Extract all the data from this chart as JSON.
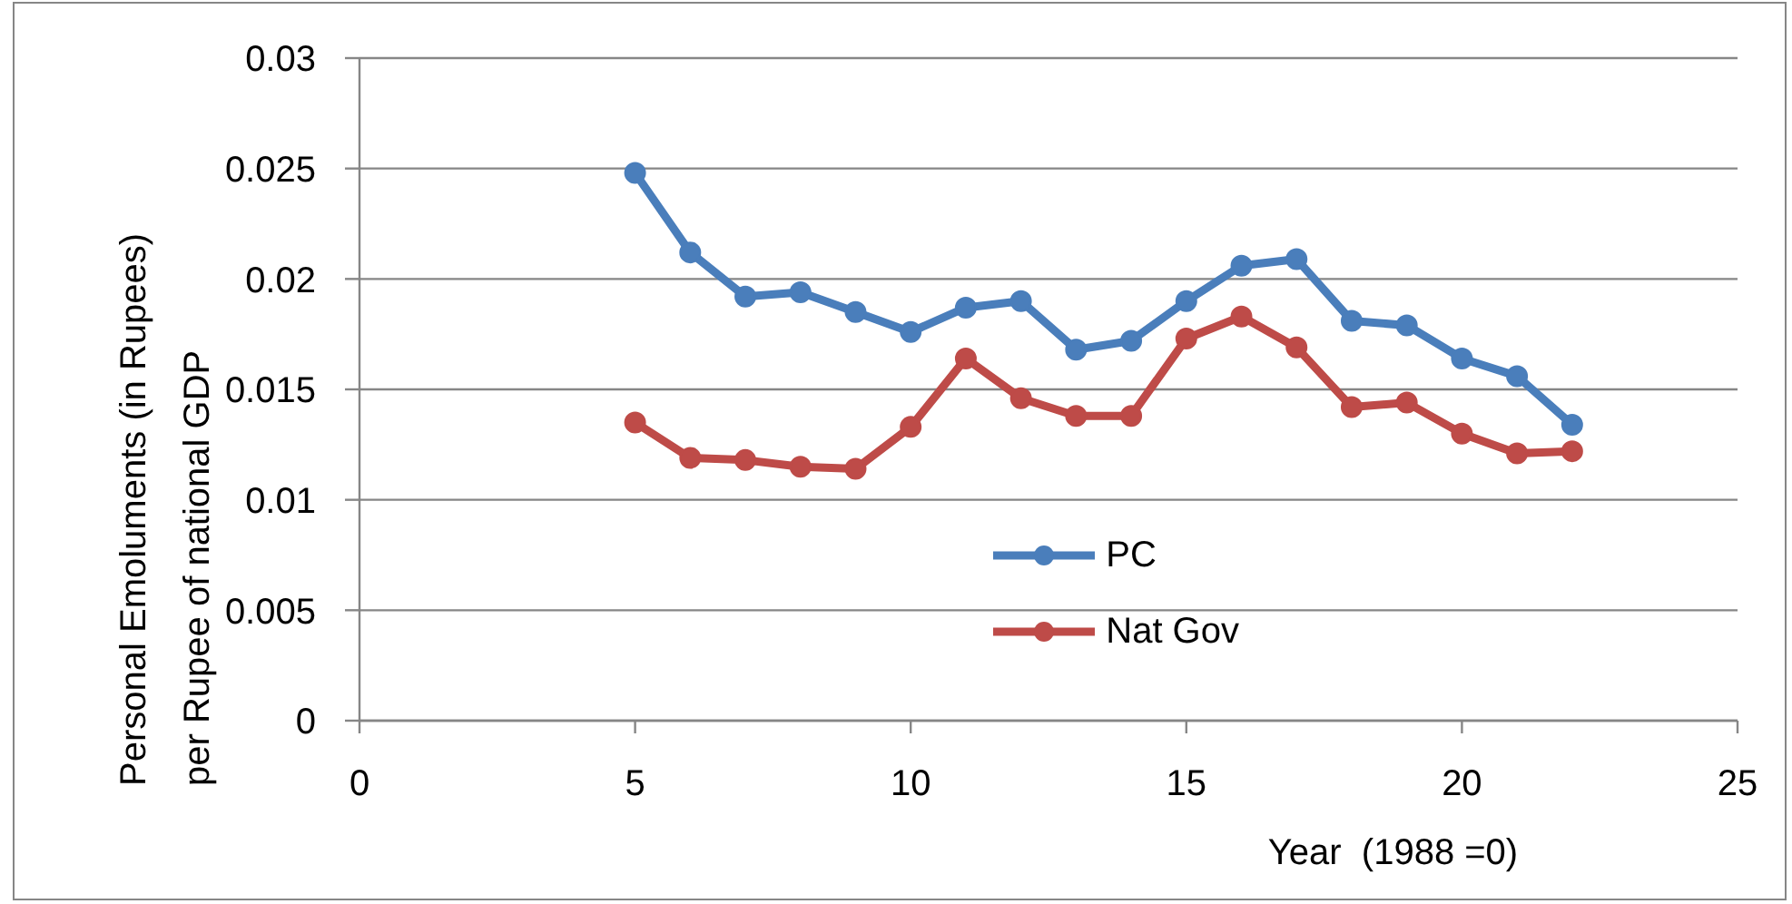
{
  "chart_data": {
    "type": "line",
    "xlabel": "Year  (1988 =0)",
    "ylabel": "Personal Emoluments (in Rupees) per Rupee of national GDP",
    "x": [
      5,
      6,
      7,
      8,
      9,
      10,
      11,
      12,
      13,
      14,
      15,
      16,
      17,
      18,
      19,
      20,
      21,
      22
    ],
    "series": [
      {
        "name": "PC",
        "color": "#4a7ebb",
        "values": [
          0.0248,
          0.0212,
          0.0192,
          0.0194,
          0.0185,
          0.0176,
          0.0187,
          0.019,
          0.0168,
          0.0172,
          0.019,
          0.0206,
          0.0209,
          0.0181,
          0.0179,
          0.0164,
          0.0156,
          0.0134
        ]
      },
      {
        "name": "Nat Gov",
        "color": "#be4b48",
        "values": [
          0.0135,
          0.0119,
          0.0118,
          0.0115,
          0.0114,
          0.0133,
          0.0164,
          0.0146,
          0.0138,
          0.0138,
          0.0173,
          0.0183,
          0.0169,
          0.0142,
          0.0144,
          0.013,
          0.0121,
          0.0122
        ]
      }
    ],
    "xlim": [
      0,
      25
    ],
    "xticks": [
      0,
      5,
      10,
      15,
      20,
      25
    ],
    "ylim": [
      0,
      0.03
    ],
    "yticks": [
      0,
      0.005,
      0.01,
      0.015,
      0.02,
      0.025,
      0.03
    ],
    "grid": "y",
    "legend": "bottom",
    "marker": "circle",
    "line_style": "solid"
  }
}
